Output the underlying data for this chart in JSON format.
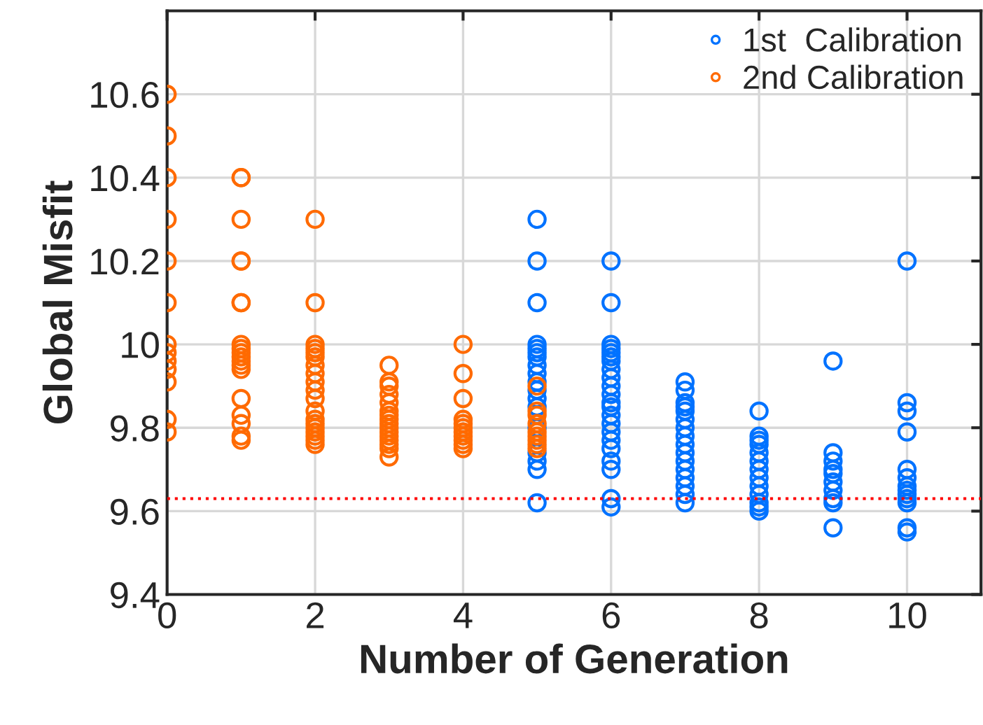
{
  "chart_data": {
    "type": "scatter",
    "xlabel": "Number of Generation",
    "ylabel": "Global Misfit",
    "xlim": [
      0,
      11
    ],
    "xticks": [
      0,
      2,
      4,
      6,
      8,
      10
    ],
    "ylim": [
      9.4,
      10.8
    ],
    "yticks": [
      9.4,
      9.6,
      9.8,
      10,
      10.2,
      10.4,
      10.6
    ],
    "grid": true,
    "legend": "top right",
    "marker": "circle",
    "ref_lines": [
      {
        "axis": "y",
        "value": 9.63,
        "color": "#ff0000",
        "line_style": "dotted"
      }
    ],
    "series": [
      {
        "name": "1st  Calibration",
        "color": "#0072ff",
        "x": [
          5,
          5,
          5,
          5,
          5,
          5,
          5,
          5,
          5,
          5,
          5,
          5,
          5,
          5,
          5,
          5,
          5,
          5,
          6,
          6,
          6,
          6,
          6,
          6,
          6,
          6,
          6,
          6,
          6,
          6,
          6,
          6,
          6,
          6,
          6,
          6,
          6,
          6,
          6,
          6,
          7,
          7,
          7,
          7,
          7,
          7,
          7,
          7,
          7,
          7,
          7,
          7,
          7,
          7,
          7,
          7,
          8,
          8,
          8,
          8,
          8,
          8,
          8,
          8,
          8,
          8,
          8,
          8,
          8,
          9,
          9,
          9,
          9,
          9,
          9,
          9,
          9,
          9,
          9,
          10,
          10,
          10,
          10,
          10,
          10,
          10,
          10,
          10,
          10,
          10,
          10,
          10
        ],
        "values": [
          10.3,
          10.2,
          10.1,
          10.0,
          9.99,
          9.98,
          9.97,
          9.95,
          9.93,
          9.91,
          9.89,
          9.87,
          9.85,
          9.8,
          9.74,
          9.72,
          9.7,
          9.62,
          10.2,
          10.1,
          10.0,
          9.99,
          9.98,
          9.97,
          9.96,
          9.94,
          9.92,
          9.9,
          9.88,
          9.86,
          9.85,
          9.83,
          9.81,
          9.79,
          9.77,
          9.75,
          9.72,
          9.7,
          9.63,
          9.61,
          9.91,
          9.89,
          9.86,
          9.85,
          9.84,
          9.82,
          9.8,
          9.78,
          9.76,
          9.74,
          9.72,
          9.7,
          9.68,
          9.66,
          9.64,
          9.62,
          9.84,
          9.78,
          9.77,
          9.76,
          9.74,
          9.72,
          9.7,
          9.68,
          9.66,
          9.64,
          9.62,
          9.61,
          9.6,
          9.96,
          9.74,
          9.72,
          9.7,
          9.69,
          9.67,
          9.65,
          9.63,
          9.62,
          9.56,
          10.2,
          9.86,
          9.84,
          9.79,
          9.7,
          9.68,
          9.66,
          9.65,
          9.64,
          9.63,
          9.62,
          9.56,
          9.55
        ]
      },
      {
        "name": "2nd Calibration",
        "color": "#ff6a00",
        "x": [
          0,
          0,
          0,
          0,
          0,
          0,
          0,
          0,
          0,
          0,
          0,
          0,
          0,
          1,
          1,
          1,
          1,
          1,
          1,
          1,
          1,
          1,
          1,
          1,
          1,
          1,
          1,
          1,
          1,
          1,
          1,
          1,
          2,
          2,
          2,
          2,
          2,
          2,
          2,
          2,
          2,
          2,
          2,
          2,
          2,
          2,
          2,
          2,
          2,
          2,
          2,
          3,
          3,
          3,
          3,
          3,
          3,
          3,
          3,
          3,
          3,
          3,
          3,
          3,
          3,
          3,
          3,
          4,
          4,
          4,
          4,
          4,
          4,
          4,
          4,
          4,
          4,
          4,
          5,
          5,
          5,
          5,
          5,
          5,
          5,
          5,
          5
        ],
        "values": [
          10.6,
          10.5,
          10.4,
          10.3,
          10.2,
          10.1,
          10.0,
          9.98,
          9.96,
          9.94,
          9.91,
          9.82,
          9.79,
          10.4,
          10.4,
          10.3,
          10.2,
          10.2,
          10.1,
          10.1,
          10.0,
          9.99,
          9.98,
          9.97,
          9.96,
          9.95,
          9.94,
          9.87,
          9.83,
          9.81,
          9.78,
          9.77,
          10.3,
          10.1,
          10.0,
          9.99,
          9.98,
          9.97,
          9.95,
          9.93,
          9.91,
          9.89,
          9.87,
          9.84,
          9.82,
          9.81,
          9.8,
          9.79,
          9.78,
          9.77,
          9.76,
          9.95,
          9.91,
          9.9,
          9.88,
          9.86,
          9.84,
          9.83,
          9.82,
          9.81,
          9.8,
          9.79,
          9.78,
          9.77,
          9.76,
          9.75,
          9.73,
          10.0,
          9.93,
          9.87,
          9.82,
          9.81,
          9.8,
          9.79,
          9.78,
          9.77,
          9.76,
          9.75,
          9.9,
          9.84,
          9.83,
          9.81,
          9.79,
          9.78,
          9.77,
          9.76,
          9.75
        ]
      }
    ]
  }
}
